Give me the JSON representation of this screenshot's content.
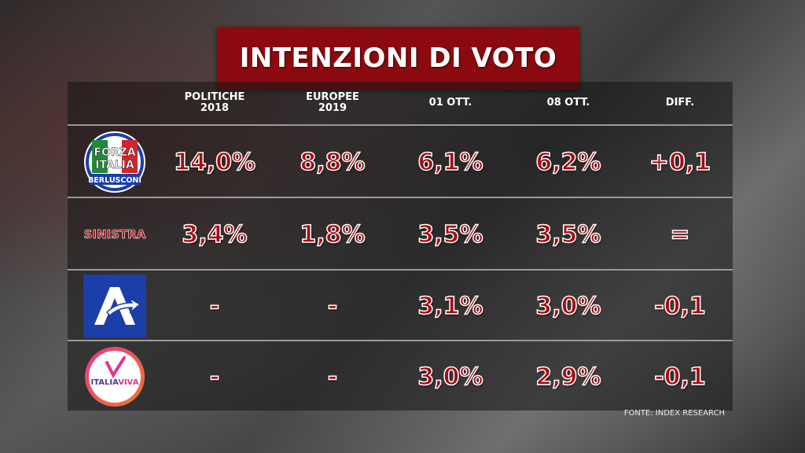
{
  "title": "INTENZIONI DI VOTO",
  "headers": {
    "col1": [
      "POLITICHE",
      "2018"
    ],
    "col2": [
      "EUROPEE",
      "2019"
    ],
    "col3": "01 OTT.",
    "col4": "08 OTT.",
    "col5": "DIFF."
  },
  "rows": [
    {
      "party": "Forza Italia",
      "logo": {
        "line1": "FORZA",
        "line2": "ITALIA",
        "line3": "BERLUSCONI"
      },
      "values": [
        "14,0%",
        "8,8%",
        "6,1%",
        "6,2%",
        "+0,1"
      ]
    },
    {
      "party": "SINISTRA",
      "values": [
        "3,4%",
        "1,8%",
        "3,5%",
        "3,5%",
        "="
      ]
    },
    {
      "party": "Azione",
      "logo": {
        "letter": "A"
      },
      "values": [
        "-",
        "-",
        "3,1%",
        "3,0%",
        "-0,1"
      ]
    },
    {
      "party": "Italia Viva",
      "logo": {
        "part1": "ITALIA",
        "part2": "VIVA"
      },
      "values": [
        "-",
        "-",
        "3,0%",
        "2,9%",
        "-0,1"
      ]
    }
  ],
  "source": "FONTE: INDEX RESEARCH",
  "colors": {
    "title_bg": "#8b0a0f",
    "value_red": "#a50d14",
    "azione_blue": "#1c3ea8"
  }
}
